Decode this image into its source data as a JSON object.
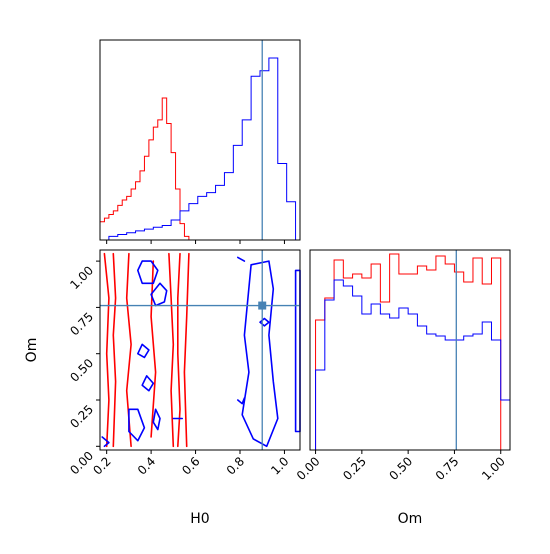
{
  "chart_data": [
    {
      "type": "histogram",
      "panel": "H0 marginal",
      "x_range": [
        0.17,
        1.07
      ],
      "x_ticks": [
        0.2,
        0.4,
        0.6,
        0.8,
        1.0
      ],
      "truth": 0.9,
      "series": [
        {
          "color": "#ff0000",
          "bins": [
            [
              0.17,
              0.19,
              0.1
            ],
            [
              0.19,
              0.21,
              0.12
            ],
            [
              0.21,
              0.23,
              0.14
            ],
            [
              0.23,
              0.25,
              0.16
            ],
            [
              0.25,
              0.27,
              0.19
            ],
            [
              0.27,
              0.29,
              0.22
            ],
            [
              0.29,
              0.31,
              0.24
            ],
            [
              0.31,
              0.33,
              0.28
            ],
            [
              0.33,
              0.35,
              0.32
            ],
            [
              0.35,
              0.37,
              0.38
            ],
            [
              0.37,
              0.39,
              0.46
            ],
            [
              0.39,
              0.41,
              0.55
            ],
            [
              0.41,
              0.43,
              0.62
            ],
            [
              0.43,
              0.45,
              0.66
            ],
            [
              0.45,
              0.47,
              0.78
            ],
            [
              0.47,
              0.49,
              0.64
            ],
            [
              0.49,
              0.51,
              0.48
            ],
            [
              0.51,
              0.53,
              0.28
            ],
            [
              0.53,
              0.55,
              0.09
            ],
            [
              0.55,
              0.57,
              0.02
            ]
          ]
        },
        {
          "color": "#0000ff",
          "bins": [
            [
              0.17,
              0.21,
              0.0
            ],
            [
              0.21,
              0.25,
              0.02
            ],
            [
              0.25,
              0.29,
              0.03
            ],
            [
              0.29,
              0.33,
              0.04
            ],
            [
              0.33,
              0.37,
              0.05
            ],
            [
              0.37,
              0.41,
              0.06
            ],
            [
              0.41,
              0.45,
              0.07
            ],
            [
              0.45,
              0.49,
              0.08
            ],
            [
              0.49,
              0.53,
              0.11
            ],
            [
              0.53,
              0.57,
              0.16
            ],
            [
              0.57,
              0.61,
              0.2
            ],
            [
              0.61,
              0.65,
              0.24
            ],
            [
              0.65,
              0.69,
              0.26
            ],
            [
              0.69,
              0.73,
              0.3
            ],
            [
              0.73,
              0.77,
              0.37
            ],
            [
              0.77,
              0.81,
              0.52
            ],
            [
              0.81,
              0.85,
              0.66
            ],
            [
              0.85,
              0.89,
              0.9
            ],
            [
              0.89,
              0.93,
              0.93
            ],
            [
              0.93,
              0.97,
              1.0
            ],
            [
              0.97,
              1.01,
              0.42
            ],
            [
              1.01,
              1.05,
              0.21
            ]
          ]
        }
      ]
    },
    {
      "type": "contour",
      "panel": "H0 vs Om",
      "xlabel": "H0",
      "ylabel": "Om",
      "x_range": [
        0.17,
        1.07
      ],
      "y_range": [
        -0.02,
        1.06
      ],
      "x_ticks": [
        0.2,
        0.4,
        0.6,
        0.8,
        1.0
      ],
      "y_ticks": [
        0.0,
        0.25,
        0.5,
        0.75,
        1.0
      ],
      "truth": [
        0.9,
        0.76
      ],
      "series": [
        {
          "color": "#ff0000",
          "contours": [
            [
              [
                0.19,
                1.04
              ],
              [
                0.21,
                0.8
              ],
              [
                0.2,
                0.5
              ],
              [
                0.21,
                0.25
              ],
              [
                0.2,
                0.0
              ]
            ],
            [
              [
                0.23,
                1.04
              ],
              [
                0.24,
                0.8
              ],
              [
                0.23,
                0.6
              ],
              [
                0.24,
                0.35
              ],
              [
                0.23,
                0.0
              ]
            ],
            [
              [
                0.48,
                1.04
              ],
              [
                0.49,
                0.8
              ],
              [
                0.5,
                0.55
              ],
              [
                0.49,
                0.3
              ],
              [
                0.5,
                0.0
              ]
            ],
            [
              [
                0.53,
                1.04
              ],
              [
                0.52,
                0.8
              ],
              [
                0.52,
                0.5
              ],
              [
                0.53,
                0.2
              ],
              [
                0.52,
                0.0
              ]
            ],
            [
              [
                0.57,
                1.04
              ],
              [
                0.56,
                0.7
              ],
              [
                0.55,
                0.4
              ],
              [
                0.56,
                0.0
              ]
            ],
            [
              [
                0.3,
                1.04
              ],
              [
                0.29,
                0.8
              ],
              [
                0.31,
                0.55
              ],
              [
                0.29,
                0.3
              ],
              [
                0.31,
                0.0
              ]
            ],
            [
              [
                0.41,
                1.0
              ],
              [
                0.4,
                0.7
              ],
              [
                0.42,
                0.4
              ],
              [
                0.4,
                0.05
              ]
            ]
          ]
        },
        {
          "color": "#0000ff",
          "contours": [
            [
              [
                0.36,
                1.0
              ],
              [
                0.4,
                1.0
              ],
              [
                0.43,
                0.95
              ],
              [
                0.41,
                0.88
              ],
              [
                0.36,
                0.88
              ],
              [
                0.34,
                0.95
              ],
              [
                0.36,
                1.0
              ]
            ],
            [
              [
                0.44,
                0.88
              ],
              [
                0.47,
                0.84
              ],
              [
                0.46,
                0.78
              ],
              [
                0.42,
                0.76
              ],
              [
                0.4,
                0.82
              ],
              [
                0.44,
                0.88
              ]
            ],
            [
              [
                0.36,
                0.55
              ],
              [
                0.39,
                0.52
              ],
              [
                0.37,
                0.48
              ],
              [
                0.34,
                0.5
              ],
              [
                0.36,
                0.55
              ]
            ],
            [
              [
                0.38,
                0.38
              ],
              [
                0.41,
                0.34
              ],
              [
                0.39,
                0.3
              ],
              [
                0.36,
                0.33
              ],
              [
                0.38,
                0.38
              ]
            ],
            [
              [
                0.3,
                0.2
              ],
              [
                0.34,
                0.2
              ],
              [
                0.37,
                0.1
              ],
              [
                0.34,
                0.03
              ],
              [
                0.3,
                0.08
              ],
              [
                0.3,
                0.2
              ]
            ],
            [
              [
                0.42,
                0.2
              ],
              [
                0.44,
                0.15
              ],
              [
                0.43,
                0.09
              ],
              [
                0.41,
                0.13
              ],
              [
                0.42,
                0.2
              ]
            ],
            [
              [
                0.5,
                0.15
              ],
              [
                0.54,
                0.15
              ]
            ],
            [
              [
                0.85,
                0.98
              ],
              [
                0.93,
                1.0
              ],
              [
                0.95,
                0.85
              ],
              [
                0.93,
                0.6
              ],
              [
                0.95,
                0.35
              ],
              [
                0.97,
                0.15
              ],
              [
                0.92,
                0.0
              ],
              [
                0.86,
                0.04
              ],
              [
                0.81,
                0.17
              ],
              [
                0.84,
                0.4
              ],
              [
                0.82,
                0.6
              ],
              [
                0.85,
                0.98
              ]
            ],
            [
              [
                1.05,
                0.95
              ],
              [
                1.07,
                0.95
              ],
              [
                1.07,
                0.08
              ],
              [
                1.05,
                0.08
              ],
              [
                1.05,
                0.95
              ]
            ],
            [
              [
                0.18,
                0.05
              ],
              [
                0.21,
                0.02
              ],
              [
                0.19,
                0.0
              ]
            ],
            [
              [
                0.79,
                1.02
              ],
              [
                0.82,
                1.0
              ]
            ],
            [
              [
                0.79,
                0.25
              ],
              [
                0.81,
                0.23
              ],
              [
                0.82,
                0.26
              ]
            ],
            [
              [
                0.89,
                0.67
              ],
              [
                0.91,
                0.65
              ],
              [
                0.93,
                0.67
              ],
              [
                0.91,
                0.69
              ],
              [
                0.89,
                0.67
              ]
            ]
          ]
        }
      ]
    },
    {
      "type": "histogram",
      "panel": "Om marginal",
      "xlabel": "Om",
      "x_range": [
        -0.03,
        1.05
      ],
      "x_ticks": [
        0.0,
        0.25,
        0.5,
        0.75,
        1.0
      ],
      "truth": 0.76,
      "series": [
        {
          "color": "#ff0000",
          "bins": [
            [
              0.0,
              0.05,
              0.65
            ],
            [
              0.05,
              0.1,
              0.76
            ],
            [
              0.1,
              0.15,
              0.95
            ],
            [
              0.15,
              0.2,
              0.86
            ],
            [
              0.2,
              0.25,
              0.88
            ],
            [
              0.25,
              0.3,
              0.86
            ],
            [
              0.3,
              0.35,
              0.93
            ],
            [
              0.35,
              0.4,
              0.74
            ],
            [
              0.4,
              0.45,
              0.98
            ],
            [
              0.45,
              0.5,
              0.88
            ],
            [
              0.5,
              0.55,
              0.88
            ],
            [
              0.55,
              0.6,
              0.92
            ],
            [
              0.6,
              0.65,
              0.9
            ],
            [
              0.65,
              0.7,
              0.97
            ],
            [
              0.7,
              0.75,
              0.93
            ],
            [
              0.75,
              0.8,
              0.89
            ],
            [
              0.8,
              0.85,
              0.84
            ],
            [
              0.85,
              0.9,
              0.96
            ],
            [
              0.9,
              0.95,
              0.83
            ],
            [
              0.95,
              1.0,
              0.96
            ]
          ]
        },
        {
          "color": "#0000ff",
          "bins": [
            [
              0.0,
              0.05,
              0.4
            ],
            [
              0.05,
              0.1,
              0.75
            ],
            [
              0.1,
              0.15,
              0.85
            ],
            [
              0.15,
              0.2,
              0.82
            ],
            [
              0.2,
              0.25,
              0.77
            ],
            [
              0.25,
              0.3,
              0.68
            ],
            [
              0.3,
              0.35,
              0.73
            ],
            [
              0.35,
              0.4,
              0.68
            ],
            [
              0.4,
              0.45,
              0.66
            ],
            [
              0.45,
              0.5,
              0.71
            ],
            [
              0.5,
              0.55,
              0.68
            ],
            [
              0.55,
              0.6,
              0.62
            ],
            [
              0.6,
              0.65,
              0.58
            ],
            [
              0.65,
              0.7,
              0.57
            ],
            [
              0.7,
              0.75,
              0.55
            ],
            [
              0.75,
              0.8,
              0.55
            ],
            [
              0.8,
              0.85,
              0.57
            ],
            [
              0.85,
              0.9,
              0.58
            ],
            [
              0.9,
              0.95,
              0.64
            ],
            [
              0.95,
              1.0,
              0.55
            ],
            [
              1.0,
              1.05,
              0.25
            ]
          ]
        }
      ]
    }
  ],
  "colors": {
    "truth_line": "#4682b4",
    "axes": "#000000"
  },
  "texts": {
    "xlabel_h0": "H0",
    "xlabel_om": "Om",
    "ylabel_om": "Om",
    "h0_ticks": [
      "0.2",
      "0.4",
      "0.6",
      "0.8",
      "1.0"
    ],
    "om_ticks": [
      "0.00",
      "0.25",
      "0.50",
      "0.75",
      "1.00"
    ]
  }
}
